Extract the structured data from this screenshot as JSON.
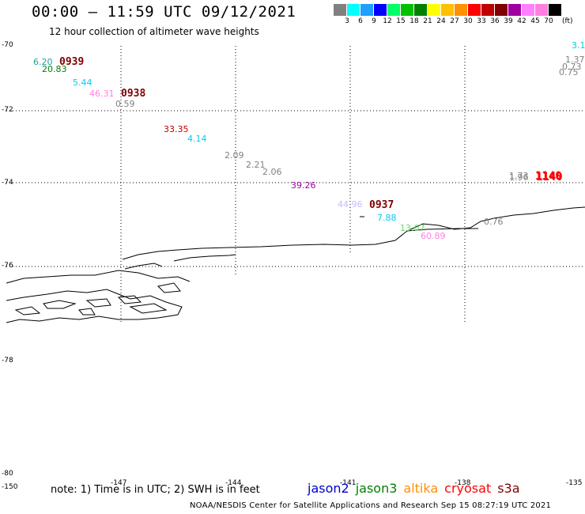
{
  "header": {
    "title": "00:00 – 11:59 UTC 09/12/2021",
    "subtitle": "12 hour collection of altimeter wave heights"
  },
  "colorbar": {
    "colors": [
      "#808080",
      "#00ffff",
      "#1ea0ff",
      "#0000ff",
      "#00ff66",
      "#00c000",
      "#008000",
      "#ffff00",
      "#ffc000",
      "#ff9000",
      "#ff0000",
      "#c00000",
      "#800000",
      "#a000a0",
      "#ff80ff",
      "#ff80e0",
      "#000000"
    ],
    "labels": [
      "3",
      "6",
      "9",
      "12",
      "15",
      "18",
      "21",
      "24",
      "27",
      "30",
      "33",
      "36",
      "39",
      "42",
      "45",
      "70"
    ],
    "unit": "(ft)"
  },
  "axes": {
    "y_labels": [
      "-70",
      "-72",
      "-74",
      "-76",
      "-78",
      "-78",
      "-80"
    ],
    "x_labels": [
      "-150",
      "-147",
      "-144",
      "-141",
      "-138",
      "-135"
    ]
  },
  "wave_labels": [
    {
      "text": "6.20",
      "color": "#1ea0a0"
    },
    {
      "text": "20.83",
      "color": "#008000"
    },
    {
      "text": "0939",
      "color": "#800000"
    },
    {
      "text": "5.44",
      "color": "#00ccee"
    },
    {
      "text": "46.31",
      "color": "#ff80e0"
    },
    {
      "text": "0938",
      "color": "#800000"
    },
    {
      "text": "0.59",
      "color": "#808080"
    },
    {
      "text": "33.35",
      "color": "#c00000"
    },
    {
      "text": "4.14",
      "color": "#00ccee"
    },
    {
      "text": "2.09",
      "color": "#808080"
    },
    {
      "text": "2.21",
      "color": "#808080"
    },
    {
      "text": "2.06",
      "color": "#808080"
    },
    {
      "text": "39.26",
      "color": "#a000a0"
    },
    {
      "text": "44.96",
      "color": "#c0c0ff"
    },
    {
      "text": "0937",
      "color": "#800000"
    },
    {
      "text": "7.88",
      "color": "#00ccee"
    },
    {
      "text": "13.07",
      "color": "#66dd66"
    },
    {
      "text": "60.89",
      "color": "#ff80e0"
    },
    {
      "text": "0.76",
      "color": "#808080"
    },
    {
      "text": "1.73",
      "color": "#808080"
    },
    {
      "text": "1.96",
      "color": "#808080"
    },
    {
      "text": "1140",
      "color": "#ff0000"
    },
    {
      "text": "1140",
      "color": "#ff0000"
    },
    {
      "text": "3.1",
      "color": "#00ccee"
    },
    {
      "text": "1.37",
      "color": "#808080"
    },
    {
      "text": "0.73",
      "color": "#808080"
    },
    {
      "text": "0.75",
      "color": "#808080"
    }
  ],
  "footer": {
    "note": "note:  1) Time is in UTC;  2) SWH is in feet",
    "satellites": [
      {
        "name": "jason2",
        "color": "#0000cc"
      },
      {
        "name": "jason3",
        "color": "#008000"
      },
      {
        "name": "altika",
        "color": "#ff9000"
      },
      {
        "name": "cryosat",
        "color": "#ff0000"
      },
      {
        "name": "s3a",
        "color": "#800000"
      }
    ],
    "credit": "NOAA/NESDIS Center for Satellite Applications and Research    Sep 15 08:27:19 UTC 2021"
  }
}
